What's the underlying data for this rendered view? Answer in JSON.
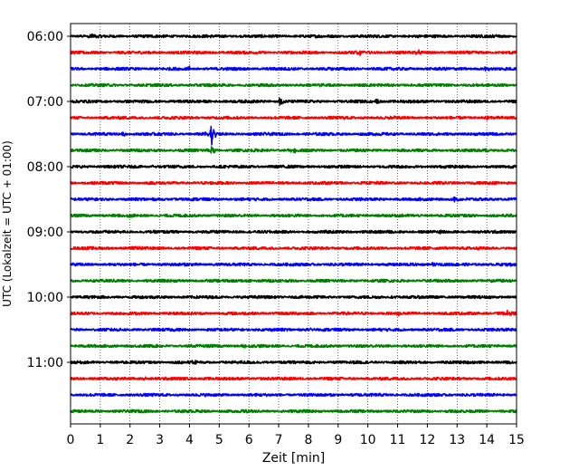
{
  "chart_data": {
    "type": "line",
    "title": "",
    "xlabel": "Zeit  [min]",
    "ylabel": "UTC (Lokalzeit = UTC + 01:00)",
    "xlim": [
      0,
      15
    ],
    "x_ticks": [
      "0",
      "1",
      "2",
      "3",
      "4",
      "5",
      "6",
      "7",
      "8",
      "9",
      "10",
      "11",
      "12",
      "13",
      "14",
      "15"
    ],
    "y_ticks": [
      "06:00",
      "07:00",
      "08:00",
      "09:00",
      "10:00",
      "11:00"
    ],
    "grid": "vertical-dotted",
    "trace_colors": [
      "#000000",
      "#ff0000",
      "#0000ff",
      "#008000"
    ],
    "traces": [
      {
        "start": "06:00",
        "events": [
          {
            "t": 0.7,
            "amp": 0.4
          },
          {
            "t": 14.3,
            "amp": 0.25
          }
        ]
      },
      {
        "start": "06:15",
        "events": [
          {
            "t": 9.7,
            "amp": 0.3
          },
          {
            "t": 11.7,
            "amp": 0.2
          }
        ]
      },
      {
        "start": "06:30",
        "events": [
          {
            "t": 4.0,
            "amp": 0.25
          },
          {
            "t": 14.0,
            "amp": 0.25
          }
        ]
      },
      {
        "start": "06:45",
        "events": [
          {
            "t": 8.5,
            "amp": 0.2
          }
        ]
      },
      {
        "start": "07:00",
        "events": [
          {
            "t": 7.05,
            "amp": 0.5
          },
          {
            "t": 10.3,
            "amp": 0.25
          }
        ]
      },
      {
        "start": "07:15",
        "events": [
          {
            "t": 14.0,
            "amp": 0.35
          },
          {
            "t": 10.9,
            "amp": 0.2
          }
        ]
      },
      {
        "start": "07:30",
        "events": [
          {
            "t": 4.75,
            "amp": 1.4
          },
          {
            "t": 1.8,
            "amp": 0.2
          }
        ]
      },
      {
        "start": "07:45",
        "events": [
          {
            "t": 4.75,
            "amp": 0.6
          },
          {
            "t": 7.5,
            "amp": 0.3
          },
          {
            "t": 14.0,
            "amp": 0.2
          }
        ]
      },
      {
        "start": "08:00",
        "events": [
          {
            "t": 2.8,
            "amp": 0.25
          }
        ]
      },
      {
        "start": "08:15",
        "events": [
          {
            "t": 9.0,
            "amp": 0.15
          }
        ]
      },
      {
        "start": "08:30",
        "events": [
          {
            "t": 12.9,
            "amp": 0.4
          }
        ]
      },
      {
        "start": "08:45",
        "events": [
          {
            "t": 2.0,
            "amp": 0.15
          }
        ]
      },
      {
        "start": "09:00",
        "events": [
          {
            "t": 12.5,
            "amp": 0.2
          }
        ]
      },
      {
        "start": "09:15",
        "events": [
          {
            "t": 2.2,
            "amp": 0.2
          },
          {
            "t": 12.6,
            "amp": 0.15
          }
        ]
      },
      {
        "start": "09:30",
        "events": [
          {
            "t": 12.2,
            "amp": 0.2
          },
          {
            "t": 14.8,
            "amp": 0.2
          }
        ]
      },
      {
        "start": "09:45",
        "events": [
          {
            "t": 14.0,
            "amp": 0.25
          },
          {
            "t": 6.0,
            "amp": 0.2
          }
        ]
      },
      {
        "start": "10:00",
        "events": [
          {
            "t": 10.9,
            "amp": 0.2
          }
        ]
      },
      {
        "start": "10:15",
        "events": [
          {
            "t": 11.0,
            "amp": 0.2
          },
          {
            "t": 14.7,
            "amp": 0.25
          }
        ]
      },
      {
        "start": "10:30",
        "events": [
          {
            "t": 8.0,
            "amp": 0.2
          }
        ]
      },
      {
        "start": "10:45",
        "events": [
          {
            "t": 5.8,
            "amp": 0.35
          },
          {
            "t": 4.0,
            "amp": 0.15
          }
        ]
      },
      {
        "start": "11:00",
        "events": [
          {
            "t": 4.2,
            "amp": 0.2
          }
        ]
      },
      {
        "start": "11:15",
        "events": [
          {
            "t": 2.5,
            "amp": 0.15
          }
        ]
      },
      {
        "start": "11:30",
        "events": [
          {
            "t": 9.5,
            "amp": 0.15
          }
        ]
      },
      {
        "start": "11:45",
        "events": [
          {
            "t": 6.0,
            "amp": 0.15
          }
        ]
      }
    ]
  }
}
